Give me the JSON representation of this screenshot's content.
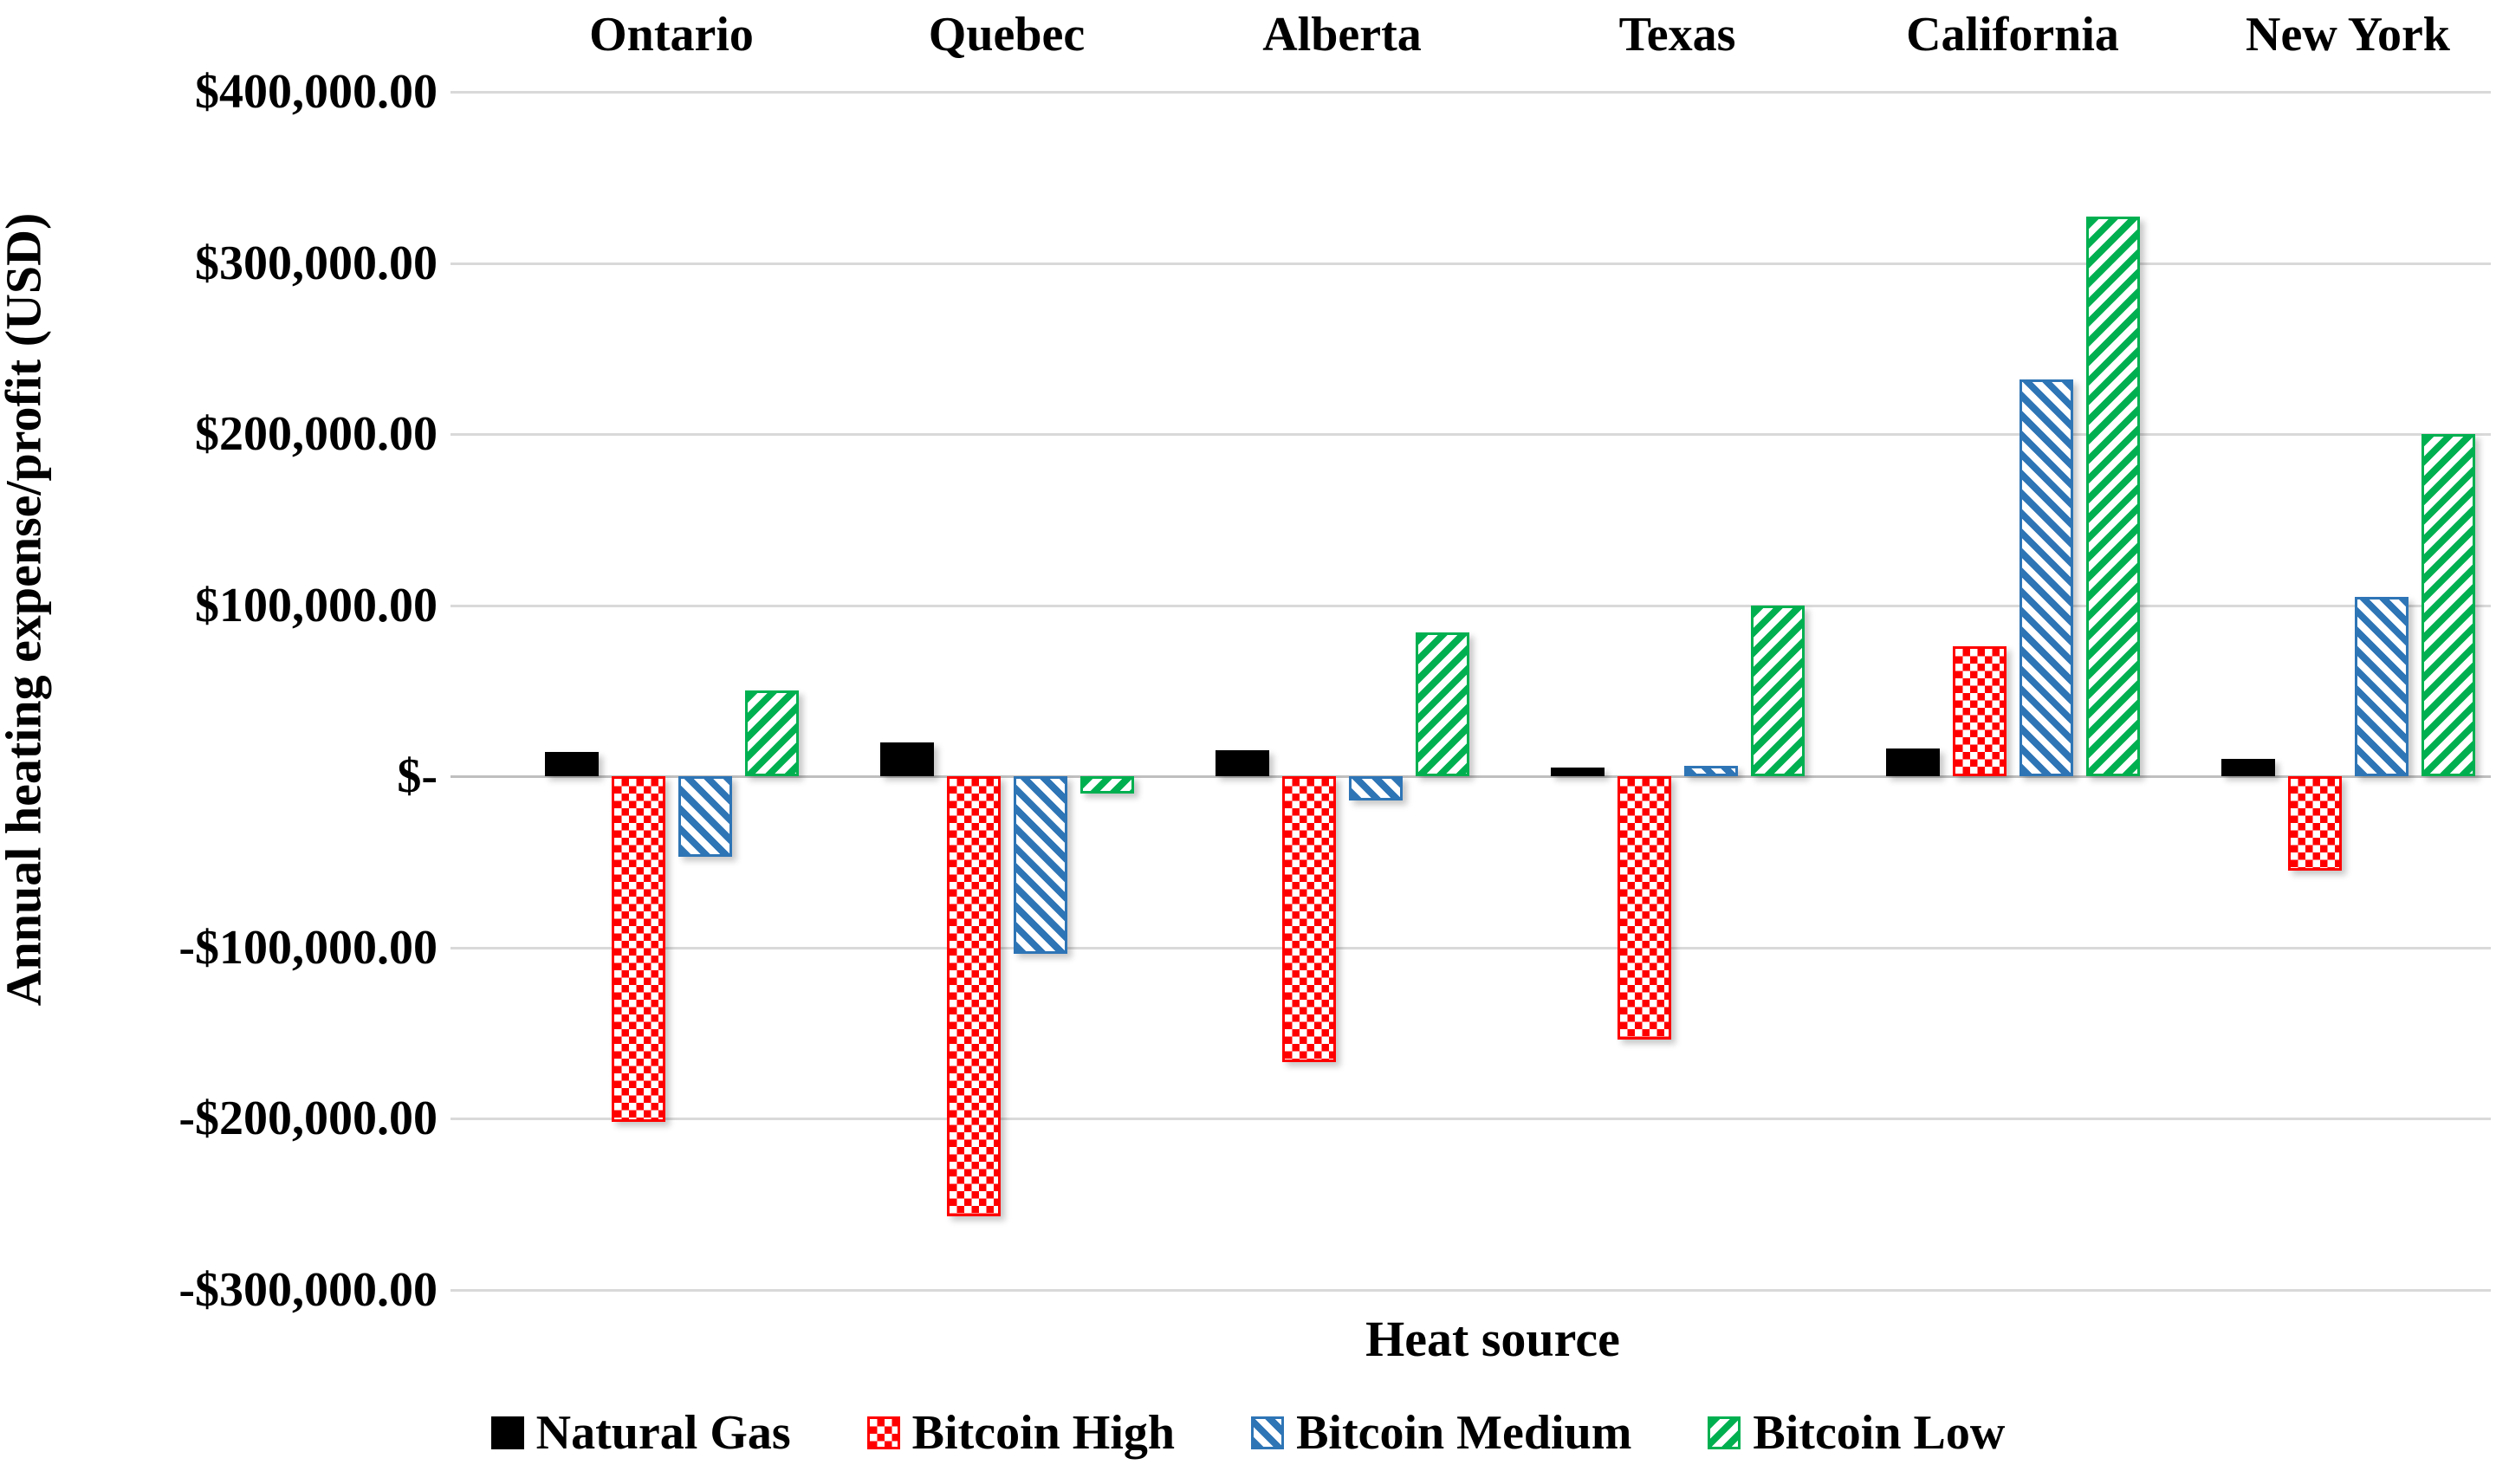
{
  "chart_data": {
    "type": "bar",
    "title": "",
    "xlabel": "Heat source",
    "ylabel": "Annual heating expense/profit (USD)",
    "categories": [
      "Ontario",
      "Quebec",
      "Alberta",
      "Texas",
      "California",
      "New York"
    ],
    "series": [
      {
        "name": "Natural Gas",
        "pattern": "solid",
        "color": "#000000",
        "values": [
          14000,
          20000,
          15000,
          5000,
          16000,
          10000
        ]
      },
      {
        "name": "Bitcoin High",
        "pattern": "checker",
        "color": "#FF0000",
        "values": [
          -202000,
          -257000,
          -167000,
          -154000,
          76000,
          -55000
        ]
      },
      {
        "name": "Bitcoin Medium",
        "pattern": "diag-down",
        "color": "#2E75B6",
        "values": [
          -47000,
          -104000,
          -14000,
          6000,
          232000,
          105000
        ]
      },
      {
        "name": "Bitcoin Low",
        "pattern": "diag-up",
        "color": "#00B050",
        "values": [
          50000,
          -10000,
          84000,
          100000,
          327000,
          200000
        ]
      }
    ],
    "y_ticks": [
      {
        "value": 400000,
        "label": "$400,000.00"
      },
      {
        "value": 300000,
        "label": "$300,000.00"
      },
      {
        "value": 200000,
        "label": "$200,000.00"
      },
      {
        "value": 100000,
        "label": "$100,000.00"
      },
      {
        "value": 0,
        "label": "$-"
      },
      {
        "value": -100000,
        "label": "-$100,000.00"
      },
      {
        "value": -200000,
        "label": "-$200,000.00"
      },
      {
        "value": -300000,
        "label": "-$300,000.00"
      }
    ],
    "ylim": [
      -300000,
      400000
    ],
    "grid": true,
    "gridline_color": "#D9D9D9",
    "legend_position": "bottom",
    "category_labels_position": "top"
  }
}
